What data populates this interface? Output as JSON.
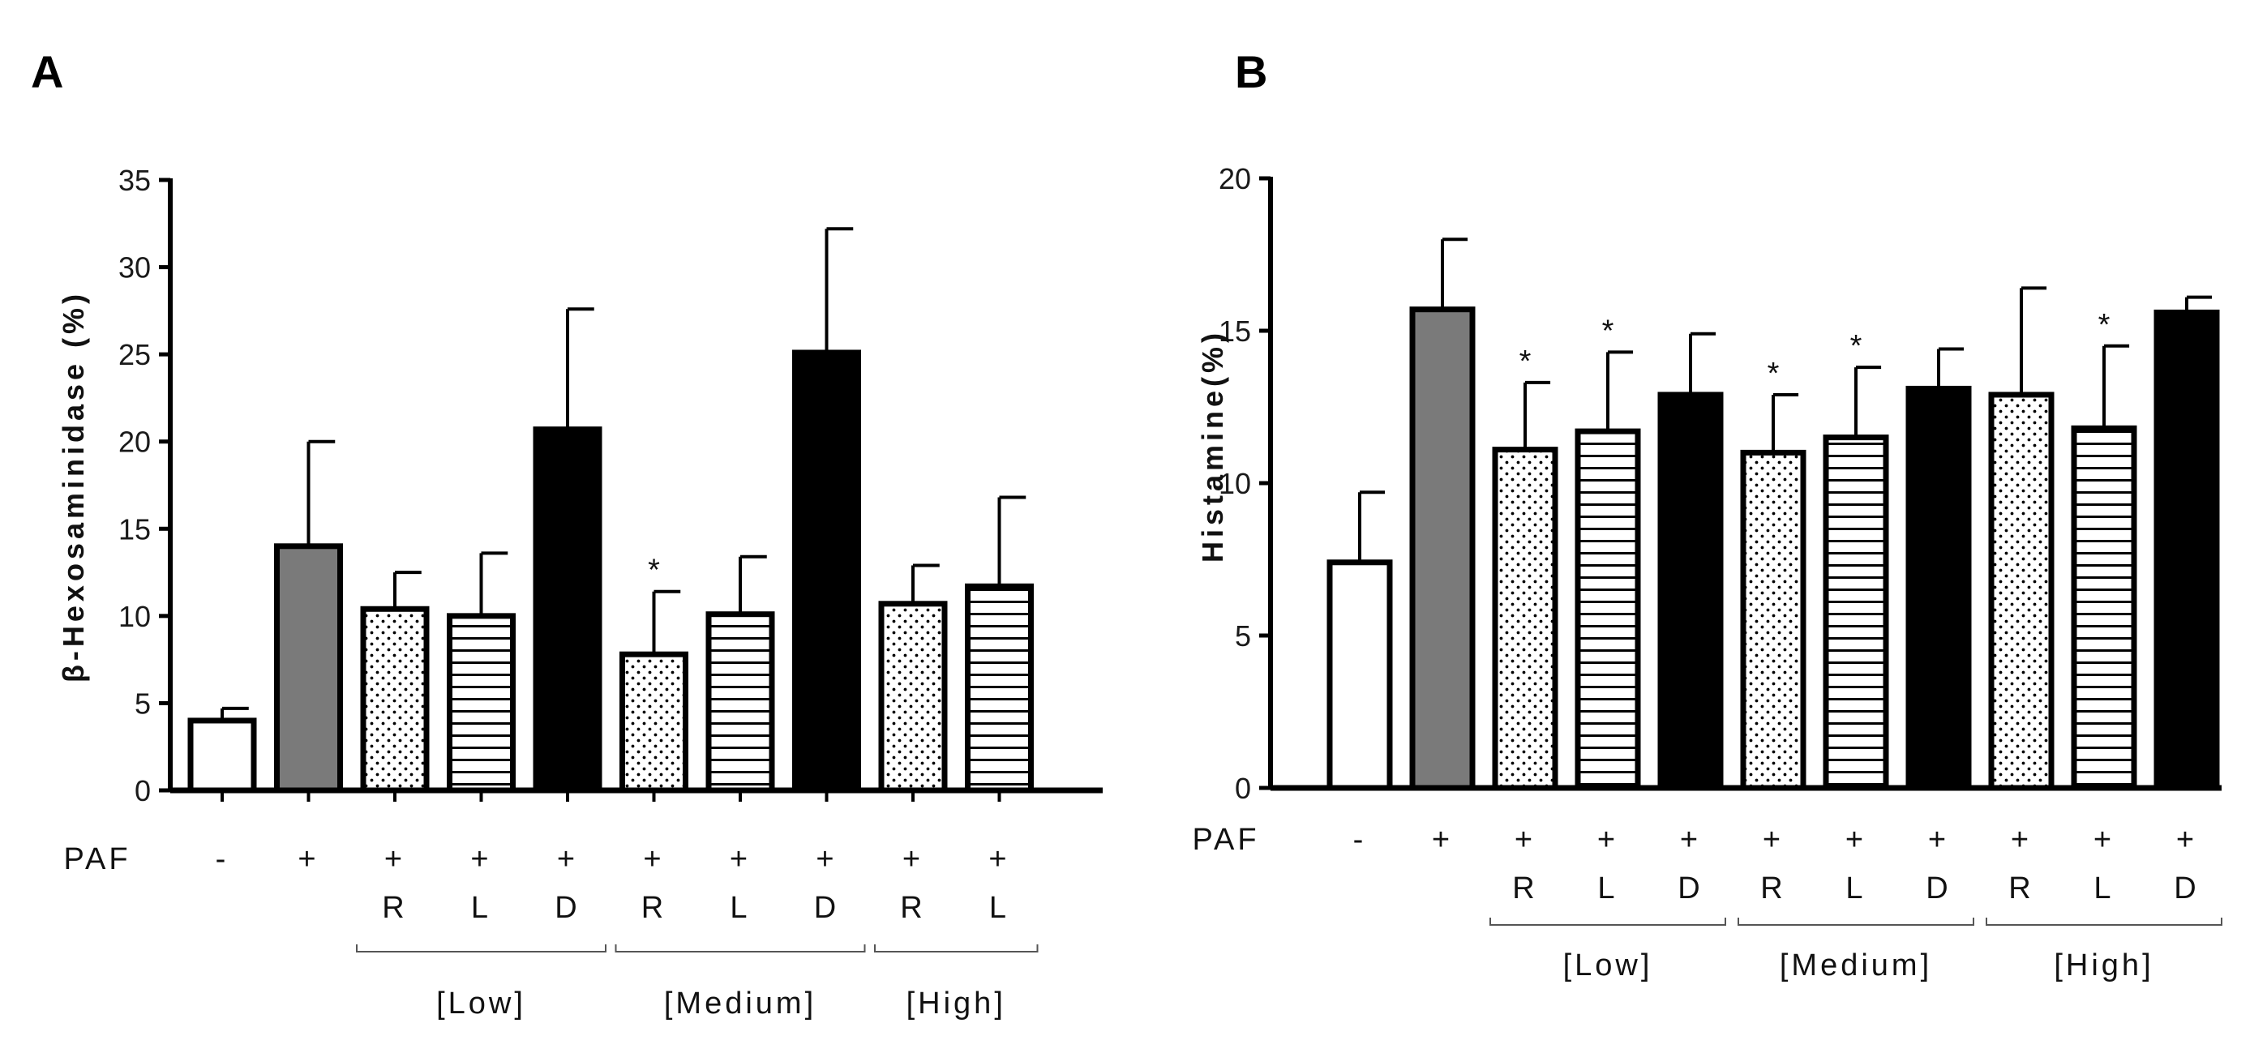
{
  "chart_data": [
    {
      "panel": "A",
      "type": "bar",
      "ylabel": "β-Hexosaminidase (%)",
      "ylim": [
        0,
        35
      ],
      "yticks": [
        0,
        5,
        10,
        15,
        20,
        25,
        30,
        35
      ],
      "row_label": "PAF",
      "bars": [
        {
          "paf": "-",
          "dose": "",
          "value": 4.0,
          "error": 0.7,
          "fill": "white",
          "sig": ""
        },
        {
          "paf": "+",
          "dose": "",
          "value": 14.0,
          "error": 6.0,
          "fill": "gray",
          "sig": ""
        },
        {
          "paf": "+",
          "dose": "R",
          "value": 10.4,
          "error": 2.1,
          "fill": "dots",
          "sig": ""
        },
        {
          "paf": "+",
          "dose": "L",
          "value": 10.0,
          "error": 3.6,
          "fill": "stripes",
          "sig": ""
        },
        {
          "paf": "+",
          "dose": "D",
          "value": 20.7,
          "error": 6.9,
          "fill": "black",
          "sig": ""
        },
        {
          "paf": "+",
          "dose": "R",
          "value": 7.8,
          "error": 3.6,
          "fill": "dots",
          "sig": "*"
        },
        {
          "paf": "+",
          "dose": "L",
          "value": 10.1,
          "error": 3.3,
          "fill": "stripes",
          "sig": ""
        },
        {
          "paf": "+",
          "dose": "D",
          "value": 25.1,
          "error": 7.1,
          "fill": "black",
          "sig": ""
        },
        {
          "paf": "+",
          "dose": "R",
          "value": 10.7,
          "error": 2.2,
          "fill": "dots",
          "sig": ""
        },
        {
          "paf": "+",
          "dose": "L",
          "value": 11.7,
          "error": 5.1,
          "fill": "stripes",
          "sig": ""
        }
      ],
      "groups": [
        {
          "label": "[Low]",
          "start": 2,
          "end": 4
        },
        {
          "label": "[Medium]",
          "start": 5,
          "end": 7
        },
        {
          "label": "[High]",
          "start": 8,
          "end": 9
        }
      ]
    },
    {
      "panel": "B",
      "type": "bar",
      "ylabel": "Histamine(%)",
      "ylim": [
        0,
        20
      ],
      "yticks": [
        0,
        5,
        10,
        15,
        20
      ],
      "row_label": "PAF",
      "bars": [
        {
          "paf": "-",
          "dose": "",
          "value": 7.4,
          "error": 2.3,
          "fill": "white",
          "sig": ""
        },
        {
          "paf": "+",
          "dose": "",
          "value": 15.7,
          "error": 2.3,
          "fill": "gray",
          "sig": ""
        },
        {
          "paf": "+",
          "dose": "R",
          "value": 11.1,
          "error": 2.2,
          "fill": "dots",
          "sig": "*"
        },
        {
          "paf": "+",
          "dose": "L",
          "value": 11.7,
          "error": 2.6,
          "fill": "stripes",
          "sig": "*"
        },
        {
          "paf": "+",
          "dose": "D",
          "value": 12.9,
          "error": 2.0,
          "fill": "black",
          "sig": ""
        },
        {
          "paf": "+",
          "dose": "R",
          "value": 11.0,
          "error": 1.9,
          "fill": "dots",
          "sig": "*"
        },
        {
          "paf": "+",
          "dose": "L",
          "value": 11.5,
          "error": 2.3,
          "fill": "stripes",
          "sig": "*"
        },
        {
          "paf": "+",
          "dose": "D",
          "value": 13.1,
          "error": 1.3,
          "fill": "black",
          "sig": ""
        },
        {
          "paf": "+",
          "dose": "R",
          "value": 12.9,
          "error": 3.5,
          "fill": "dots",
          "sig": ""
        },
        {
          "paf": "+",
          "dose": "L",
          "value": 11.8,
          "error": 2.7,
          "fill": "stripes",
          "sig": "*"
        },
        {
          "paf": "+",
          "dose": "D",
          "value": 15.6,
          "error": 0.5,
          "fill": "black",
          "sig": ""
        }
      ],
      "groups": [
        {
          "label": "[Low]",
          "start": 2,
          "end": 4
        },
        {
          "label": "[Medium]",
          "start": 5,
          "end": 7
        },
        {
          "label": "[High]",
          "start": 8,
          "end": 10
        }
      ]
    }
  ],
  "colors": {
    "gray": "#7a7a7a",
    "black": "#000000",
    "white": "#ffffff",
    "stroke": "#000000"
  }
}
